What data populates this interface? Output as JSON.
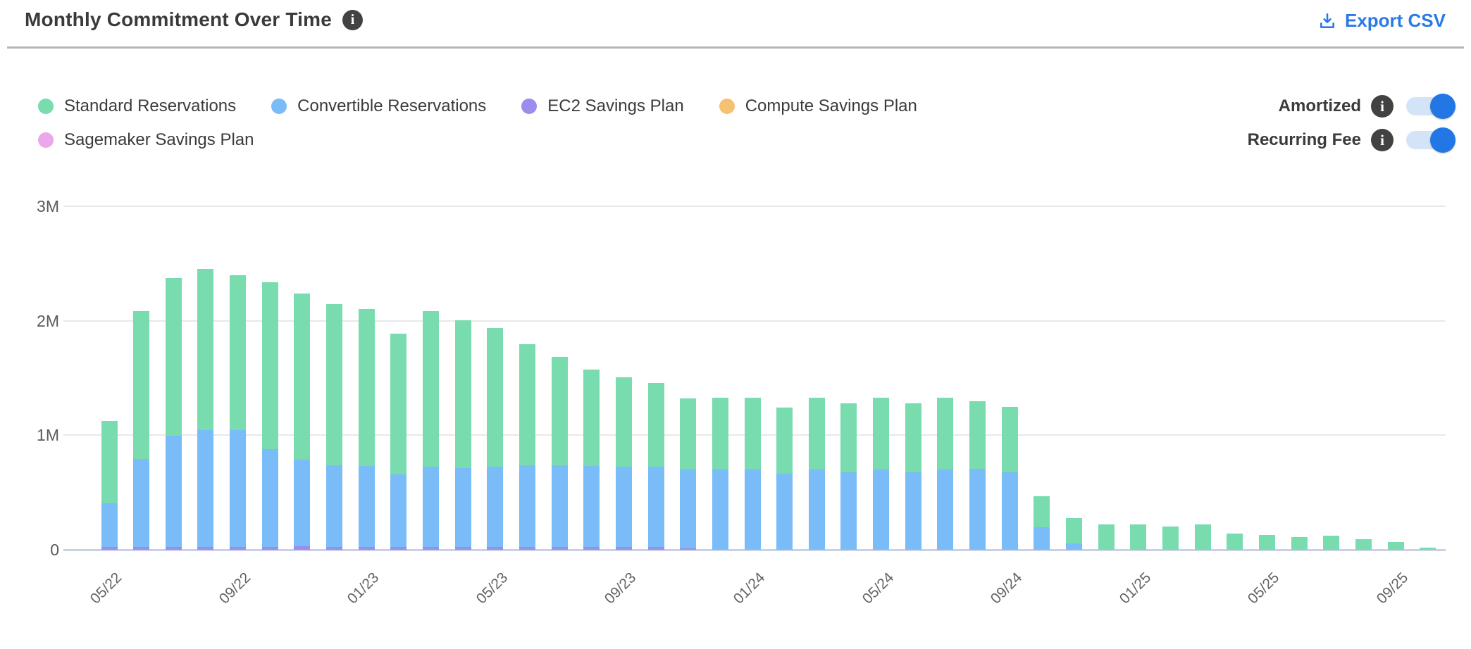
{
  "header": {
    "title": "Monthly Commitment Over Time",
    "export_label": "Export CSV"
  },
  "legend": {
    "items": [
      {
        "label": "Standard Reservations",
        "color": "#79dcae"
      },
      {
        "label": "Convertible Reservations",
        "color": "#79bcf7"
      },
      {
        "label": "EC2 Savings Plan",
        "color": "#9d8bf0"
      },
      {
        "label": "Compute Savings Plan",
        "color": "#f5c173"
      },
      {
        "label": "Sagemaker Savings Plan",
        "color": "#eba7e9"
      }
    ]
  },
  "toggles": [
    {
      "label": "Amortized",
      "state": "on"
    },
    {
      "label": "Recurring Fee",
      "state": "on"
    }
  ],
  "colors": {
    "accent_blue": "#2b79e4",
    "toggle_track": "#d4e4f8",
    "toggle_knob": "#2277e5",
    "info_badge": "#424242",
    "gridline": "#e9e9e9",
    "baseline": "#c9d1e4",
    "axis_text": "#5a5a5a"
  },
  "chart_data": {
    "type": "bar",
    "stacked": true,
    "unit": "M",
    "ylim": [
      0,
      3
    ],
    "grid": true,
    "legend_position": "top-left",
    "yticks": [
      {
        "label": "3M",
        "value": 3
      },
      {
        "label": "2M",
        "value": 2
      },
      {
        "label": "1M",
        "value": 1
      },
      {
        "label": "0",
        "value": 0
      }
    ],
    "x_label_every": 4,
    "categories": [
      "05/22",
      "06/22",
      "07/22",
      "08/22",
      "09/22",
      "10/22",
      "11/22",
      "12/22",
      "01/23",
      "02/23",
      "03/23",
      "04/23",
      "05/23",
      "06/23",
      "07/23",
      "08/23",
      "09/23",
      "10/23",
      "11/23",
      "12/23",
      "01/24",
      "02/24",
      "03/24",
      "04/24",
      "05/24",
      "06/24",
      "07/24",
      "08/24",
      "09/24",
      "10/24",
      "11/24",
      "12/24",
      "01/25",
      "02/25",
      "03/25",
      "04/25",
      "05/25",
      "06/25",
      "07/25",
      "08/25",
      "09/25",
      "10/25"
    ],
    "series": [
      {
        "name": "EC2 Savings Plan",
        "color": "#9d8bf0",
        "values": [
          0.025,
          0.025,
          0.025,
          0.025,
          0.025,
          0.025,
          0.025,
          0.025,
          0.025,
          0.025,
          0.025,
          0.025,
          0.025,
          0.025,
          0.025,
          0.025,
          0.025,
          0.025,
          0.012,
          0,
          0,
          0,
          0,
          0,
          0,
          0,
          0,
          0,
          0,
          0,
          0,
          0,
          0,
          0,
          0,
          0,
          0,
          0,
          0,
          0,
          0,
          0
        ]
      },
      {
        "name": "Sagemaker Savings Plan",
        "color": "#eba7e9",
        "values": [
          0,
          0,
          0,
          0,
          0,
          0,
          0,
          0,
          0,
          0,
          0,
          0,
          0,
          0,
          0,
          0,
          0,
          0,
          0,
          0,
          0,
          0,
          0,
          0,
          0,
          0,
          0,
          0,
          0,
          0,
          0,
          0,
          0,
          0,
          0,
          0,
          0,
          0,
          0,
          0,
          0,
          0
        ]
      },
      {
        "name": "Convertible Reservations",
        "color": "#79bcf7",
        "values": [
          0.38,
          0.77,
          0.97,
          1.02,
          1.02,
          0.85,
          0.76,
          0.71,
          0.71,
          0.63,
          0.7,
          0.69,
          0.7,
          0.71,
          0.71,
          0.71,
          0.7,
          0.7,
          0.69,
          0.7,
          0.7,
          0.66,
          0.7,
          0.68,
          0.7,
          0.68,
          0.7,
          0.71,
          0.68,
          0.2,
          0.055,
          0,
          0,
          0,
          0,
          0,
          0,
          0,
          0,
          0,
          0,
          0
        ]
      },
      {
        "name": "Standard Reservations",
        "color": "#79dcae",
        "values": [
          0.72,
          1.29,
          1.38,
          1.41,
          1.35,
          1.46,
          1.45,
          1.41,
          1.37,
          1.23,
          1.36,
          1.29,
          1.21,
          1.06,
          0.95,
          0.84,
          0.78,
          0.73,
          0.62,
          0.63,
          0.63,
          0.58,
          0.63,
          0.6,
          0.63,
          0.6,
          0.63,
          0.59,
          0.57,
          0.27,
          0.22,
          0.22,
          0.22,
          0.2,
          0.22,
          0.14,
          0.13,
          0.11,
          0.12,
          0.09,
          0.065,
          0.02
        ]
      },
      {
        "name": "Compute Savings Plan",
        "color": "#f5c173",
        "values": [
          0,
          0,
          0,
          0,
          0,
          0,
          0,
          0,
          0,
          0,
          0,
          0,
          0,
          0,
          0,
          0,
          0,
          0,
          0,
          0,
          0,
          0,
          0,
          0,
          0,
          0,
          0,
          0,
          0,
          0,
          0,
          0,
          0,
          0,
          0,
          0,
          0,
          0,
          0,
          0,
          0,
          0
        ]
      }
    ]
  }
}
